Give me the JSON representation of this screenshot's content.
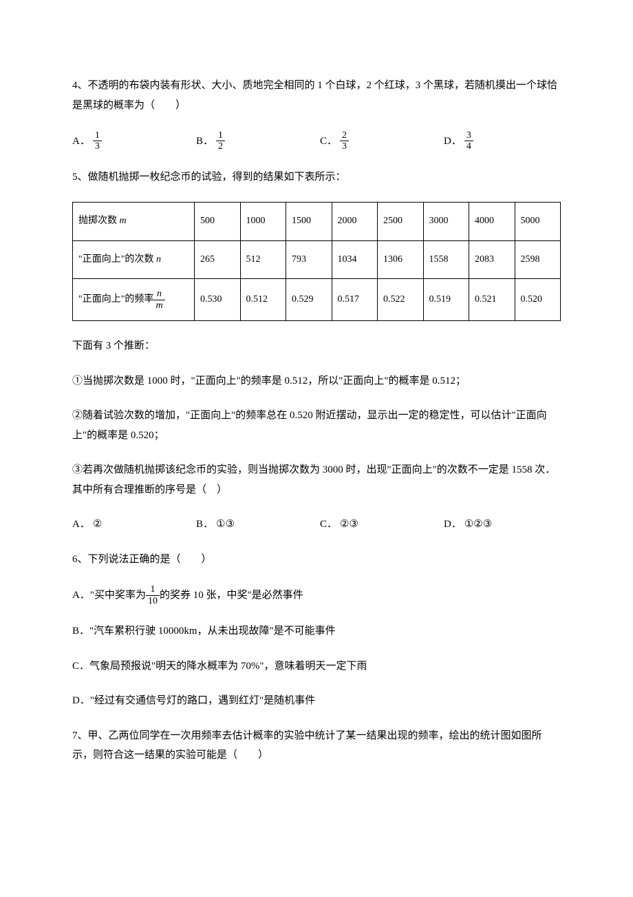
{
  "q4": {
    "text": "4、不透明的布袋内装有形状、大小、质地完全相同的 1 个白球，2 个红球，3 个黑球，若随机摸出一个球恰是黑球的概率为（　　）",
    "choices": {
      "A": {
        "num": "1",
        "den": "3"
      },
      "B": {
        "num": "1",
        "den": "2"
      },
      "C": {
        "num": "2",
        "den": "3"
      },
      "D": {
        "num": "3",
        "den": "4"
      }
    }
  },
  "q5": {
    "intro": "5、做随机抛掷一枚纪念币的试验，得到的结果如下表所示：",
    "table": {
      "row1_label": "抛掷次数 m",
      "row1": [
        "500",
        "1000",
        "1500",
        "2000",
        "2500",
        "3000",
        "4000",
        "5000"
      ],
      "row2_label": "\"正面向上\"的次数 n",
      "row2": [
        "265",
        "512",
        "793",
        "1034",
        "1306",
        "1558",
        "2083",
        "2598"
      ],
      "row3_label_prefix": "\"正面向上\"的频率",
      "row3_frac_num": "n",
      "row3_frac_den": "m",
      "row3": [
        "0.530",
        "0.512",
        "0.529",
        "0.517",
        "0.522",
        "0.519",
        "0.521",
        "0.520"
      ]
    },
    "below": "下面有 3 个推断：",
    "s1": "①当抛掷次数是 1000 时，\"正面向上\"的频率是 0.512，所以\"正面向上\"的概率是 0.512；",
    "s2": "②随着试验次数的增加，\"正面向上\"的频率总在 0.520 附近摆动，显示出一定的稳定性，可以估计\"正面向上\"的概率是 0.520；",
    "s3": "③若再次做随机抛掷该纪念币的实验，则当抛掷次数为 3000 时，出现\"正面向上\"的次数不一定是 1558 次．其中所有合理推断的序号是（　）",
    "choices": {
      "A": "②",
      "B": "①③",
      "C": "②③",
      "D": "①②③"
    }
  },
  "q6": {
    "text": "6、下列说法正确的是（　　）",
    "A_pre": "A．\"买中奖率为",
    "A_num": "1",
    "A_den": "10",
    "A_post": "的奖券 10 张，中奖\"是必然事件",
    "B": "B．\"汽车累积行驶 10000km，从未出现故障\"是不可能事件",
    "C": "C．气象局预报说\"明天的降水概率为 70%\"，意味着明天一定下雨",
    "D": "D．\"经过有交通信号灯的路口，遇到红灯\"是随机事件"
  },
  "q7": {
    "text": "7、甲、乙两位同学在一次用频率去估计概率的实验中统计了某一结果出现的频率，绘出的统计图如图所示，则符合这一结果的实验可能是（　　）"
  },
  "labels": {
    "A": "A．",
    "B": "B．",
    "C": "C．",
    "D": "D．"
  }
}
